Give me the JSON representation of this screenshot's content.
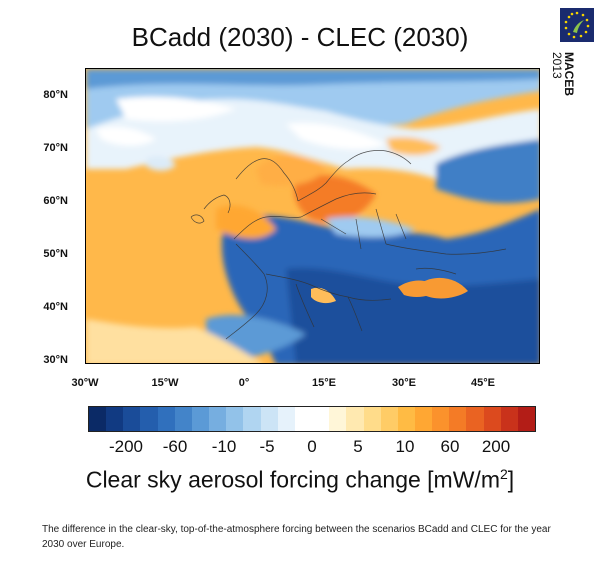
{
  "title": "BCadd (2030) - CLEC (2030)",
  "logo": {
    "line1": "MACEB",
    "line2": "2013",
    "color": "#1a2b6e",
    "icon": "eu-stars-plant-icon"
  },
  "map": {
    "lat_labels": [
      "80°N",
      "70°N",
      "60°N",
      "50°N",
      "40°N",
      "30°N"
    ],
    "lon_labels": [
      "30°W",
      "15°W",
      "0°",
      "15°E",
      "30°E",
      "45°E"
    ]
  },
  "colorbar": {
    "colors": [
      "#0b2a66",
      "#113a82",
      "#1a4c99",
      "#245ead",
      "#3070bd",
      "#4384c9",
      "#5b9ad6",
      "#76aee0",
      "#92c2e9",
      "#b0d5f1",
      "#cce4f6",
      "#e6f2fb",
      "#ffffff",
      "#ffffff",
      "#fff6d8",
      "#ffe9b0",
      "#ffdc8a",
      "#ffcc66",
      "#ffbb44",
      "#ffa733",
      "#fb922c",
      "#f47b26",
      "#ea6322",
      "#dc4a1e",
      "#c9321b",
      "#b31d17"
    ],
    "tick_labels": [
      "-200",
      "-60",
      "-10",
      "-5",
      "0",
      "5",
      "10",
      "60",
      "200"
    ]
  },
  "unit_label": {
    "text": "Clear sky aerosol forcing change [mW/m",
    "sup": "2",
    "close": "]"
  },
  "caption": "The difference in the clear-sky, top-of-the-atmosphere forcing between the scenarios BCadd and CLEC for the year 2030 over Europe."
}
